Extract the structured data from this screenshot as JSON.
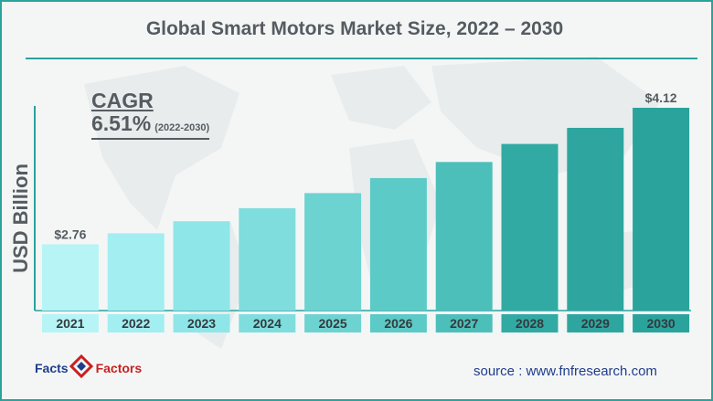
{
  "title": "Global Smart Motors Market Size, 2022 – 2030",
  "cagr": {
    "label": "CAGR",
    "value": "6.51%",
    "range": "(2022-2030)"
  },
  "source": "source : www.fnfresearch.com",
  "logo": {
    "left": "Facts",
    "right": "Factors"
  },
  "colors": {
    "border": "#2aa39c",
    "bars": [
      "#b6f4f6",
      "#a2eef1",
      "#8fe6e8",
      "#7fdddd",
      "#6dd3d1",
      "#5ccac6",
      "#4cbfba",
      "#31aaa3",
      "#2ea69f",
      "#2aa39c"
    ],
    "text": "#555c61"
  },
  "chart_data": {
    "type": "bar",
    "categories": [
      "2021",
      "2022",
      "2023",
      "2024",
      "2025",
      "2026",
      "2027",
      "2028",
      "2029",
      "2030"
    ],
    "values": [
      2.76,
      2.87,
      2.99,
      3.12,
      3.27,
      3.42,
      3.58,
      3.76,
      3.92,
      4.12
    ],
    "data_labels": {
      "0": "$2.76",
      "9": "$4.12"
    },
    "title": "Global Smart Motors Market Size, 2022 – 2030",
    "xlabel": "",
    "ylabel": "USD Billion",
    "grid": false,
    "legend": "none"
  }
}
